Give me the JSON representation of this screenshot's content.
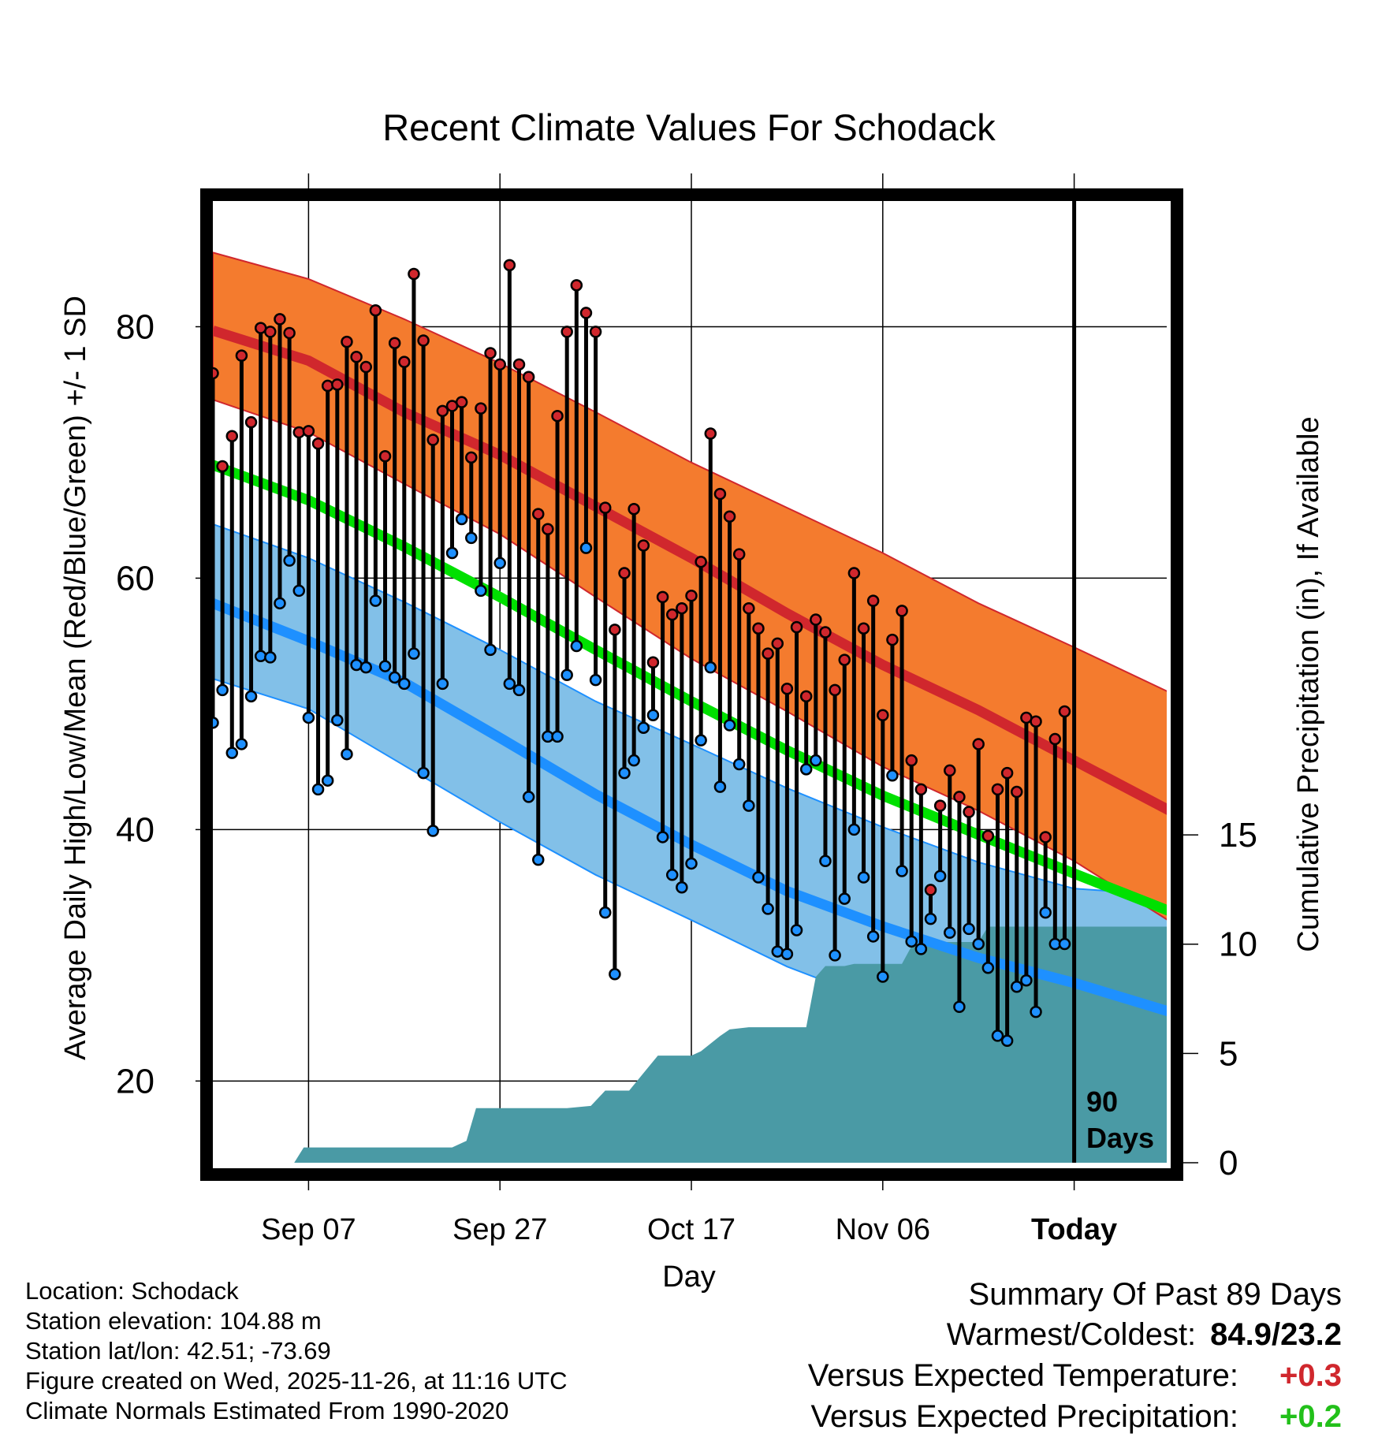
{
  "chart_data": {
    "type": "line",
    "title": "Recent Climate Values For Schodack",
    "xlabel": "Day",
    "ylabel": "Average Daily High/Low/Mean (Red/Blue/Green) +/- 1 SD",
    "y2label": "Cumulative Precipitation (in), If Available",
    "xlim": [
      0,
      100
    ],
    "ylim": [
      13.5,
      90
    ],
    "y2lim": [
      0,
      44
    ],
    "yticks": [
      20,
      40,
      60,
      80
    ],
    "y2ticks": [
      0,
      5,
      10,
      15
    ],
    "xticks": [
      {
        "day": 10,
        "label": "Sep 07"
      },
      {
        "day": 30,
        "label": "Sep 27"
      },
      {
        "day": 50,
        "label": "Oct 17"
      },
      {
        "day": 70,
        "label": "Nov 06"
      },
      {
        "day": 90,
        "label": "Today"
      }
    ],
    "today_day": 90,
    "today_label": [
      "90",
      "Days"
    ],
    "normals": {
      "days": [
        0,
        10,
        20,
        30,
        40,
        50,
        60,
        70,
        80,
        90,
        100
      ],
      "high_mean": [
        79.7,
        77.3,
        73.2,
        69.8,
        65.7,
        61.6,
        57.2,
        53.1,
        49.5,
        45.5,
        41.5
      ],
      "high_upper": [
        85.9,
        83.8,
        80.6,
        77.1,
        73.2,
        69.2,
        65.6,
        62.0,
        58.0,
        54.5,
        50.9
      ],
      "high_lower": [
        74.2,
        71.6,
        67.5,
        63.5,
        58.5,
        53.6,
        49.4,
        45.0,
        41.5,
        37.5,
        32.7
      ],
      "low_mean": [
        58.0,
        55.0,
        51.7,
        47.3,
        42.8,
        38.8,
        35.1,
        32.3,
        29.8,
        27.8,
        25.5
      ],
      "low_upper": [
        64.3,
        61.6,
        58.1,
        54.3,
        50.2,
        46.8,
        43.3,
        40.2,
        37.4,
        35.3,
        34.8
      ],
      "low_lower": [
        52.0,
        49.6,
        45.1,
        40.6,
        36.4,
        32.8,
        29.1,
        26.2,
        24.2,
        21.4,
        19.3
      ],
      "mean": [
        69.0,
        66.2,
        62.5,
        58.5,
        54.3,
        50.2,
        46.3,
        42.7,
        39.6,
        36.5,
        33.5
      ]
    },
    "daily_days": [
      0,
      1,
      2,
      3,
      4,
      5,
      6,
      7,
      8,
      9,
      10,
      11,
      12,
      13,
      14,
      15,
      16,
      17,
      18,
      19,
      20,
      21,
      22,
      23,
      24,
      25,
      26,
      27,
      28,
      29,
      30,
      31,
      32,
      33,
      34,
      35,
      36,
      37,
      38,
      39,
      40,
      41,
      42,
      43,
      44,
      45,
      46,
      47,
      48,
      49,
      50,
      51,
      52,
      53,
      54,
      55,
      56,
      57,
      58,
      59,
      60,
      61,
      62,
      63,
      64,
      65,
      66,
      67,
      68,
      69,
      70,
      71,
      72,
      73,
      74,
      75,
      76,
      77,
      78,
      79,
      80,
      81,
      82,
      83,
      84,
      85,
      86,
      87,
      88,
      89
    ],
    "daily_high": [
      76.3,
      68.9,
      71.3,
      77.7,
      72.4,
      79.9,
      79.6,
      80.6,
      79.5,
      71.6,
      71.7,
      70.7,
      75.3,
      75.4,
      78.8,
      77.6,
      76.8,
      81.3,
      69.7,
      78.7,
      77.2,
      84.2,
      78.9,
      71.0,
      73.3,
      73.7,
      74.0,
      69.6,
      73.5,
      77.9,
      77.0,
      84.9,
      77.0,
      76.0,
      65.1,
      63.9,
      72.9,
      79.6,
      83.3,
      81.1,
      79.6,
      65.6,
      55.9,
      60.4,
      65.5,
      62.6,
      53.3,
      58.5,
      57.1,
      57.6,
      58.6,
      61.3,
      71.5,
      66.7,
      64.9,
      61.9,
      57.6,
      56.0,
      54.0,
      54.8,
      51.2,
      56.1,
      50.6,
      56.7,
      55.7,
      51.1,
      53.5,
      60.4,
      56.0,
      58.2,
      49.1,
      55.1,
      57.4,
      45.5,
      43.2,
      35.2,
      41.9,
      44.7,
      42.6,
      41.4,
      46.8,
      39.5,
      43.2,
      44.5,
      43.0,
      48.9,
      48.6,
      39.4,
      47.2,
      49.4
    ],
    "daily_low": [
      48.5,
      51.1,
      46.1,
      46.8,
      50.6,
      53.8,
      53.7,
      58.0,
      61.4,
      59.0,
      48.9,
      43.2,
      43.9,
      48.7,
      46.0,
      53.1,
      52.9,
      58.2,
      53.0,
      52.1,
      51.6,
      54.0,
      44.5,
      39.9,
      51.6,
      62.0,
      64.7,
      63.2,
      59.0,
      54.3,
      61.2,
      51.6,
      51.1,
      42.6,
      37.6,
      47.4,
      47.4,
      52.3,
      54.6,
      62.4,
      51.9,
      33.4,
      28.5,
      44.5,
      45.5,
      48.1,
      49.1,
      39.4,
      36.4,
      35.4,
      37.3,
      47.1,
      52.9,
      43.4,
      48.3,
      45.2,
      41.9,
      36.2,
      33.7,
      30.3,
      30.1,
      32.0,
      44.8,
      45.5,
      37.5,
      30.0,
      34.5,
      40.0,
      36.2,
      31.5,
      28.3,
      44.3,
      36.7,
      31.1,
      30.5,
      32.9,
      36.3,
      31.8,
      25.9,
      32.1,
      30.9,
      29.0,
      23.6,
      23.2,
      27.5,
      28.0,
      25.5,
      33.4,
      30.9,
      30.9
    ],
    "precip": {
      "days": [
        0,
        8.5,
        9.5,
        25.0,
        26.5,
        27.5,
        37,
        39.5,
        41,
        43.5,
        45,
        46.5,
        50,
        51,
        53,
        54,
        56,
        62,
        63,
        64,
        66,
        67,
        72,
        73,
        75,
        76,
        80,
        81,
        90,
        90.5,
        100
      ],
      "cum": [
        0,
        0,
        0.7,
        0.7,
        1.0,
        2.5,
        2.5,
        2.6,
        3.3,
        3.3,
        4.1,
        4.9,
        4.9,
        5.1,
        5.8,
        6.1,
        6.2,
        6.2,
        8.5,
        9.0,
        9.0,
        9.1,
        9.1,
        9.9,
        9.9,
        10.1,
        10.1,
        10.8,
        10.8,
        10.8,
        10.8
      ]
    },
    "colors": {
      "high": "#d0272d",
      "high_band": "#f47b2e",
      "low": "#1e90ff",
      "low_band": "#82c0e8",
      "mean": "#00e000",
      "precip": "#4a9aa5"
    }
  },
  "info": {
    "location": "Location: Schodack",
    "elevation": "Station elevation: 104.88 m",
    "latlon": "Station lat/lon: 42.51; -73.69",
    "created": "Figure created on Wed, 2025-11-26, at 11:16 UTC",
    "normals": "Climate Normals Estimated From 1990-2020"
  },
  "summary": {
    "title": "Summary Of Past 89 Days",
    "warmest_label": "Warmest/Coldest:",
    "warmest_value": "84.9/23.2",
    "temp_label": "Versus Expected Temperature:",
    "temp_value": "+0.3",
    "temp_color": "#d0272d",
    "precip_label": "Versus Expected Precipitation:",
    "precip_value": "+0.2",
    "precip_color": "#22c01a"
  }
}
